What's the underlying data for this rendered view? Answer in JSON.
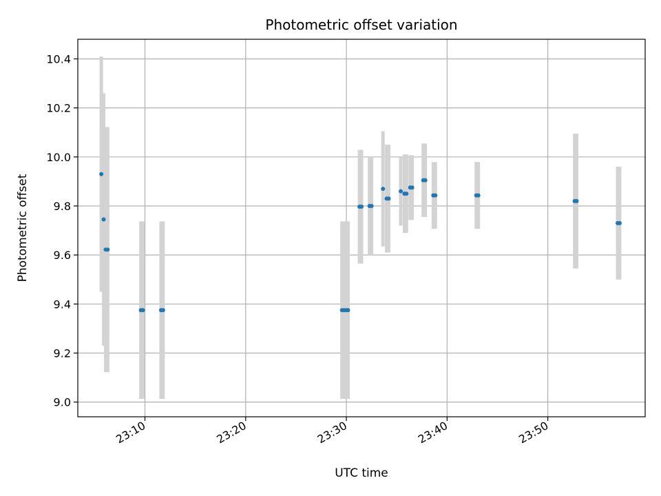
{
  "chart_data": {
    "type": "scatter",
    "title": "Photometric offset variation",
    "xlabel": "UTC time",
    "ylabel": "Photometric offset",
    "xlim": [
      "23:03:20",
      "23:59:40"
    ],
    "ylim": [
      8.94,
      10.48
    ],
    "x_ticks": [
      "23:10",
      "23:20",
      "23:30",
      "23:40",
      "23:50"
    ],
    "y_ticks": [
      9.0,
      9.2,
      9.4,
      9.6,
      9.8,
      10.0,
      10.2,
      10.4
    ],
    "grid": true,
    "colors": {
      "point": "#1f77b4",
      "errorbar": "#d3d3d3"
    },
    "points": [
      {
        "t": "23:05:40",
        "y": 9.93,
        "err": 0.48
      },
      {
        "t": "23:05:54",
        "y": 9.745,
        "err": 0.515
      },
      {
        "t": "23:06:06",
        "y": 9.622,
        "err": 0.5
      },
      {
        "t": "23:06:18",
        "y": 9.622,
        "err": 0.5
      },
      {
        "t": "23:09:36",
        "y": 9.375,
        "err": 0.362
      },
      {
        "t": "23:09:48",
        "y": 9.375,
        "err": 0.362
      },
      {
        "t": "23:11:36",
        "y": 9.375,
        "err": 0.362
      },
      {
        "t": "23:11:48",
        "y": 9.375,
        "err": 0.362
      },
      {
        "t": "23:29:34",
        "y": 9.375,
        "err": 0.362
      },
      {
        "t": "23:29:46",
        "y": 9.375,
        "err": 0.362
      },
      {
        "t": "23:29:58",
        "y": 9.375,
        "err": 0.362
      },
      {
        "t": "23:30:10",
        "y": 9.375,
        "err": 0.362
      },
      {
        "t": "23:31:18",
        "y": 9.797,
        "err": 0.232
      },
      {
        "t": "23:31:30",
        "y": 9.797,
        "err": 0.232
      },
      {
        "t": "23:32:18",
        "y": 9.8,
        "err": 0.2
      },
      {
        "t": "23:32:30",
        "y": 9.8,
        "err": 0.2
      },
      {
        "t": "23:33:38",
        "y": 9.87,
        "err": 0.235
      },
      {
        "t": "23:34:00",
        "y": 9.83,
        "err": 0.22
      },
      {
        "t": "23:34:12",
        "y": 9.83,
        "err": 0.22
      },
      {
        "t": "23:35:24",
        "y": 9.86,
        "err": 0.14
      },
      {
        "t": "23:35:46",
        "y": 9.85,
        "err": 0.16
      },
      {
        "t": "23:35:58",
        "y": 9.85,
        "err": 0.16
      },
      {
        "t": "23:36:20",
        "y": 9.875,
        "err": 0.132
      },
      {
        "t": "23:36:32",
        "y": 9.875,
        "err": 0.132
      },
      {
        "t": "23:37:38",
        "y": 9.905,
        "err": 0.15
      },
      {
        "t": "23:37:50",
        "y": 9.905,
        "err": 0.15
      },
      {
        "t": "23:38:38",
        "y": 9.843,
        "err": 0.136
      },
      {
        "t": "23:38:50",
        "y": 9.843,
        "err": 0.136
      },
      {
        "t": "23:42:54",
        "y": 9.843,
        "err": 0.136
      },
      {
        "t": "23:43:06",
        "y": 9.843,
        "err": 0.136
      },
      {
        "t": "23:52:40",
        "y": 9.82,
        "err": 0.275
      },
      {
        "t": "23:52:52",
        "y": 9.82,
        "err": 0.275
      },
      {
        "t": "23:56:56",
        "y": 9.73,
        "err": 0.23
      },
      {
        "t": "23:57:08",
        "y": 9.73,
        "err": 0.23
      }
    ]
  }
}
